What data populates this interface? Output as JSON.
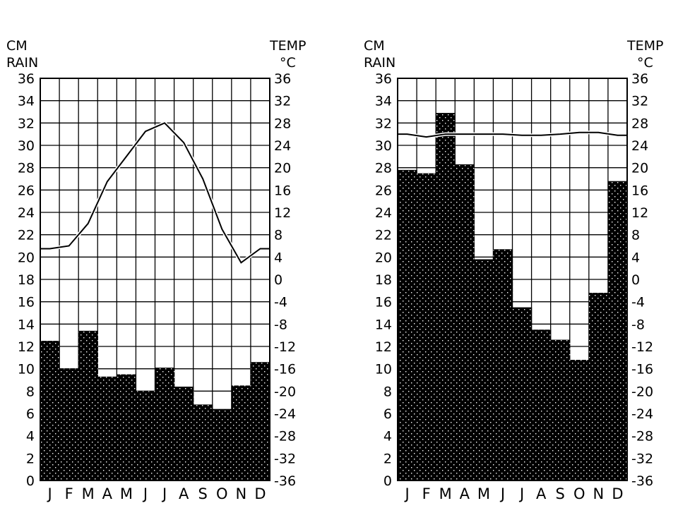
{
  "chart_data": [
    {
      "type": "bar",
      "categories": [
        "J",
        "F",
        "M",
        "A",
        "M",
        "J",
        "J",
        "A",
        "S",
        "O",
        "N",
        "D"
      ],
      "left_header": [
        "CM",
        "RAIN"
      ],
      "right_header": [
        "TEMP",
        "°C"
      ],
      "left_ticks": [
        "36",
        "34",
        "32",
        "30",
        "28",
        "26",
        "24",
        "22",
        "20",
        "18",
        "16",
        "14",
        "12",
        "10",
        "8",
        "6",
        "4",
        "2",
        "0"
      ],
      "right_ticks": [
        "36",
        "32",
        "28",
        "24",
        "20",
        "16",
        "12",
        "8",
        "4",
        "0",
        "-4",
        "-8",
        "-12",
        "-16",
        "-20",
        "-24",
        "-28",
        "-32",
        "-36"
      ],
      "ylim_rain": [
        0,
        36
      ],
      "ylim_temp": [
        -36,
        36
      ],
      "grid": true,
      "series": [
        {
          "values": [
            12.5,
            10.0,
            13.4,
            9.3,
            9.5,
            8.0,
            10.1,
            8.4,
            6.8,
            6.4,
            8.5,
            10.6
          ]
        },
        {
          "values": [
            5.5,
            6.0,
            10.0,
            17.5,
            22.0,
            26.5,
            28.0,
            24.5,
            18.0,
            9.0,
            3.0,
            5.5
          ]
        }
      ]
    },
    {
      "type": "bar",
      "categories": [
        "J",
        "F",
        "M",
        "A",
        "M",
        "J",
        "J",
        "A",
        "S",
        "O",
        "N",
        "D"
      ],
      "left_header": [
        "CM",
        "RAIN"
      ],
      "right_header": [
        "TEMP",
        "°C"
      ],
      "left_ticks": [
        "36",
        "34",
        "32",
        "30",
        "28",
        "26",
        "24",
        "22",
        "20",
        "18",
        "16",
        "14",
        "12",
        "10",
        "8",
        "6",
        "4",
        "2",
        "0"
      ],
      "right_ticks": [
        "36",
        "32",
        "28",
        "24",
        "20",
        "16",
        "12",
        "8",
        "4",
        "0",
        "-4",
        "-8",
        "-12",
        "-16",
        "-20",
        "-24",
        "-28",
        "-32",
        "-36"
      ],
      "ylim_rain": [
        0,
        36
      ],
      "ylim_temp": [
        -36,
        36
      ],
      "grid": true,
      "series": [
        {
          "values": [
            27.8,
            27.5,
            32.9,
            28.3,
            19.8,
            20.7,
            15.5,
            13.5,
            12.6,
            10.8,
            16.8,
            26.8
          ]
        },
        {
          "values": [
            26.0,
            25.5,
            26.0,
            26.0,
            26.0,
            26.0,
            25.8,
            25.8,
            26.0,
            26.3,
            26.3,
            25.8
          ]
        }
      ]
    }
  ]
}
